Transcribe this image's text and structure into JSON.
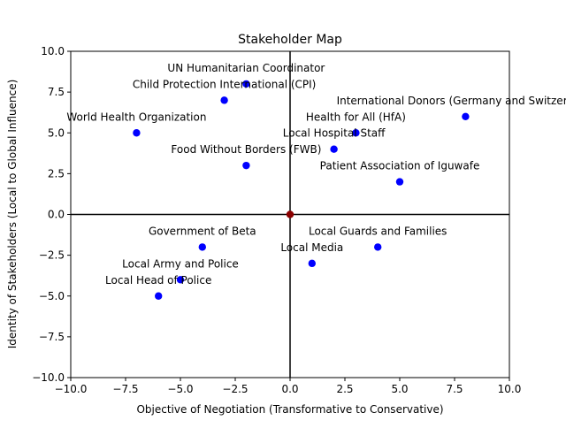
{
  "chart_data": {
    "type": "scatter",
    "title": "Stakeholder Map",
    "xlabel": "Objective of Negotiation (Transformative to Conservative)",
    "ylabel": "Identity of Stakeholders (Local to Global Influence)",
    "xlim": [
      -10,
      10
    ],
    "ylim": [
      -10,
      10
    ],
    "xticks": [
      "−10.0",
      "−7.5",
      "−5.0",
      "−2.5",
      "0.0",
      "2.5",
      "5.0",
      "7.5",
      "10.0"
    ],
    "yticks": [
      "−10.0",
      "−7.5",
      "−5.0",
      "−2.5",
      "0.0",
      "2.5",
      "5.0",
      "7.5",
      "10.0"
    ],
    "grid": false,
    "axis_lines_at_zero": true,
    "colors": {
      "points": "#0000ff",
      "origin": "#8b0000",
      "axes": "#000000"
    },
    "origin_point": {
      "x": 0,
      "y": 0
    },
    "points": [
      {
        "label": "UN Humanitarian Coordinator",
        "x": -2,
        "y": 8
      },
      {
        "label": "Child Protection International (CPI)",
        "x": -3,
        "y": 7
      },
      {
        "label": "International Donors (Germany and Switzerland)",
        "x": 8,
        "y": 6
      },
      {
        "label": "World Health Organization",
        "x": -7,
        "y": 5
      },
      {
        "label": "Health for All (HfA)",
        "x": 3,
        "y": 5
      },
      {
        "label": "Local Hospital Staff",
        "x": 2,
        "y": 4
      },
      {
        "label": "Food Without Borders (FWB)",
        "x": -2,
        "y": 3
      },
      {
        "label": "Patient Association of Iguwafe",
        "x": 5,
        "y": 2
      },
      {
        "label": "Government of Beta",
        "x": -4,
        "y": -2
      },
      {
        "label": "Local Guards and Families",
        "x": 4,
        "y": -2
      },
      {
        "label": "Local Media",
        "x": 1,
        "y": -3
      },
      {
        "label": "Local Army and Police",
        "x": -5,
        "y": -4
      },
      {
        "label": "Local Head of Police",
        "x": -6,
        "y": -5
      }
    ]
  }
}
